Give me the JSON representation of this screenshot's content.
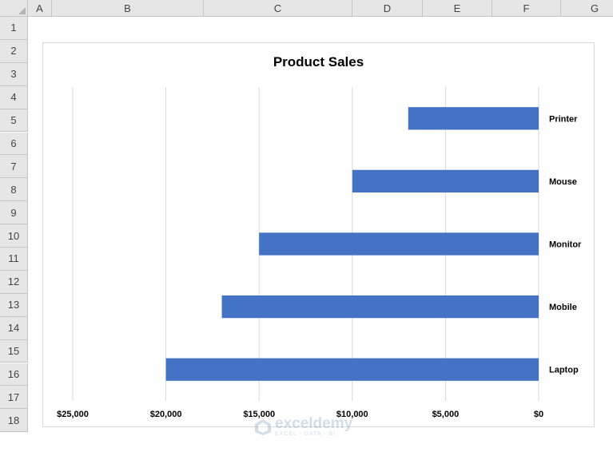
{
  "spreadsheet": {
    "columns": [
      "A",
      "B",
      "C",
      "D",
      "E",
      "F",
      "G"
    ],
    "rows": [
      "1",
      "2",
      "3",
      "4",
      "5",
      "6",
      "7",
      "8",
      "9",
      "10",
      "11",
      "12",
      "13",
      "14",
      "15",
      "16",
      "17",
      "18"
    ]
  },
  "chart_data": {
    "type": "bar",
    "orientation": "horizontal",
    "title": "Product Sales",
    "categories": [
      "Printer",
      "Mouse",
      "Monitor",
      "Mobile",
      "Laptop"
    ],
    "values": [
      7000,
      10000,
      15000,
      17000,
      20000
    ],
    "x_axis_reversed": true,
    "xlim": [
      0,
      25000
    ],
    "x_ticks": [
      25000,
      20000,
      15000,
      10000,
      5000,
      0
    ],
    "x_tick_labels": [
      "$25,000",
      "$20,000",
      "$15,000",
      "$10,000",
      "$5,000",
      "$0"
    ],
    "category_labels_side": "right",
    "grid": true,
    "bar_color": "#4472c4",
    "gridline_color": "#d9d9d9"
  },
  "watermark": {
    "name": "exceldemy",
    "tagline": "EXCEL · DATA · BI"
  }
}
